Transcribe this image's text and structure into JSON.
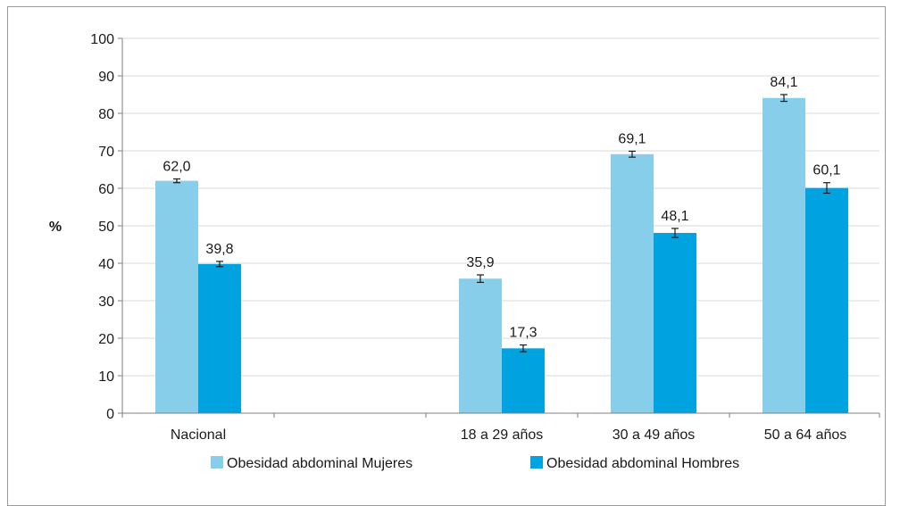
{
  "chart_data": {
    "type": "bar",
    "title": "",
    "xlabel": "",
    "ylabel": "%",
    "ylim": [
      0,
      100
    ],
    "ytick_step": 10,
    "grid": true,
    "legend_placement": "bottom",
    "categories": [
      "Nacional",
      "",
      "18 a 29 años",
      "30 a 49 años",
      "50 a 64 años"
    ],
    "series": [
      {
        "name": "Obesidad abdominal Mujeres",
        "color": "#87CEEB",
        "values": [
          62.0,
          null,
          35.9,
          69.1,
          84.1
        ],
        "labels": [
          "62,0",
          "",
          "35,9",
          "69,1",
          "84,1"
        ],
        "error": [
          0.5,
          null,
          1.0,
          0.8,
          0.9
        ]
      },
      {
        "name": "Obesidad abdominal Hombres",
        "color": "#00A3E0",
        "values": [
          39.8,
          null,
          17.3,
          48.1,
          60.1
        ],
        "labels": [
          "39,8",
          "",
          "17,3",
          "48,1",
          "60,1"
        ],
        "error": [
          0.7,
          null,
          0.9,
          1.2,
          1.4
        ]
      }
    ],
    "colors": {
      "grid": "#d9d9d9",
      "axis": "#7f7f7f",
      "text": "#1a1a1a"
    }
  }
}
